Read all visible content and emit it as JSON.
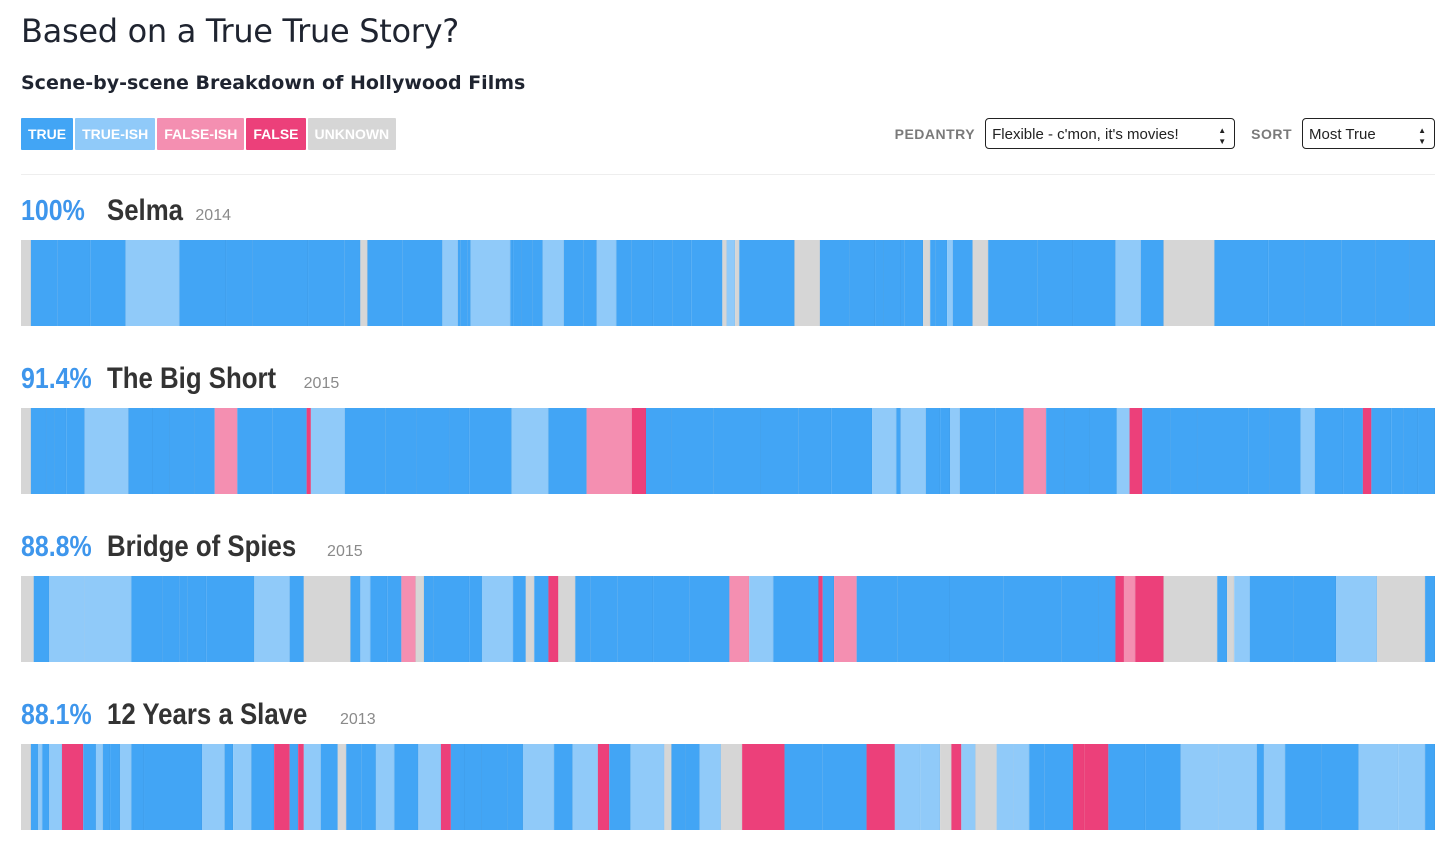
{
  "header": {
    "title": "Based on a True True Story?",
    "subtitle": "Scene-by-scene Breakdown of Hollywood Films"
  },
  "legend": [
    {
      "label": "TRUE",
      "color": "#42a5f5"
    },
    {
      "label": "TRUE-ISH",
      "color": "#90caf9"
    },
    {
      "label": "FALSE-ISH",
      "color": "#f48fb1"
    },
    {
      "label": "FALSE",
      "color": "#ec407a"
    },
    {
      "label": "UNKNOWN",
      "color": "#d6d6d6"
    }
  ],
  "controls": {
    "pedantry_label": "PEDANTRY",
    "pedantry_value": "Flexible - c'mon, it's movies!",
    "sort_label": "SORT",
    "sort_value": "Most True"
  },
  "films": [
    {
      "pct": "100%",
      "title": "Selma",
      "year": "2014",
      "segments": [
        [
          "U",
          0,
          0.7
        ],
        [
          "T",
          0.7,
          2.6
        ],
        [
          "T",
          2.6,
          4.9
        ],
        [
          "T",
          4.9,
          7.4
        ],
        [
          "I",
          7.4,
          11.2
        ],
        [
          "T",
          11.2,
          14.5
        ],
        [
          "T",
          14.5,
          16.4
        ],
        [
          "T",
          16.4,
          20.3
        ],
        [
          "T",
          20.3,
          22.9
        ],
        [
          "T",
          22.9,
          24.0
        ],
        [
          "U",
          24.0,
          24.5
        ],
        [
          "T",
          24.5,
          27.0
        ],
        [
          "T",
          27.0,
          29.8
        ],
        [
          "I",
          29.8,
          30.9
        ],
        [
          "T",
          30.9,
          31.1
        ],
        [
          "T",
          31.1,
          31.6
        ],
        [
          "T",
          31.6,
          31.8
        ],
        [
          "I",
          31.8,
          34.6
        ],
        [
          "T",
          34.6,
          34.8
        ],
        [
          "T",
          34.8,
          35.4
        ],
        [
          "T",
          35.4,
          36.2
        ],
        [
          "T",
          36.2,
          36.9
        ],
        [
          "I",
          36.9,
          38.4
        ],
        [
          "T",
          38.4,
          39.8
        ],
        [
          "T",
          39.8,
          40.7
        ],
        [
          "I",
          40.7,
          42.1
        ],
        [
          "T",
          42.1,
          43.2
        ],
        [
          "T",
          43.2,
          44.7
        ],
        [
          "T",
          44.7,
          46.1
        ],
        [
          "T",
          46.1,
          47.4
        ],
        [
          "T",
          47.4,
          49.6
        ],
        [
          "U",
          49.6,
          49.9
        ],
        [
          "I",
          49.9,
          50.5
        ],
        [
          "U",
          50.5,
          50.8
        ],
        [
          "T",
          50.8,
          54.7
        ],
        [
          "U",
          54.7,
          56.5
        ],
        [
          "T",
          56.5,
          58.6
        ],
        [
          "T",
          58.6,
          60.4
        ],
        [
          "T",
          60.4,
          61.0
        ],
        [
          "T",
          61.0,
          62.2
        ],
        [
          "T",
          62.2,
          62.5
        ],
        [
          "T",
          62.5,
          63.8
        ],
        [
          "U",
          63.8,
          64.3
        ],
        [
          "T",
          64.3,
          64.7
        ],
        [
          "T",
          64.7,
          65.5
        ],
        [
          "I",
          65.5,
          65.9
        ],
        [
          "T",
          65.9,
          67.3
        ],
        [
          "U",
          67.3,
          68.4
        ],
        [
          "T",
          68.4,
          71.9
        ],
        [
          "T",
          71.9,
          74.4
        ],
        [
          "T",
          74.4,
          77.4
        ],
        [
          "I",
          77.4,
          79.2
        ],
        [
          "T",
          79.2,
          80.8
        ],
        [
          "U",
          80.8,
          84.4
        ],
        [
          "T",
          84.4,
          88.2
        ],
        [
          "T",
          88.2,
          90.8
        ],
        [
          "T",
          90.8,
          93.4
        ],
        [
          "T",
          93.4,
          95.8
        ],
        [
          "T",
          95.8,
          98.2
        ],
        [
          "T",
          98.2,
          100
        ]
      ]
    },
    {
      "pct": "91.4%",
      "title": "The Big Short",
      "year": "2015",
      "segments": [
        [
          "U",
          0,
          0.7
        ],
        [
          "T",
          0.7,
          1.8
        ],
        [
          "T",
          1.8,
          2.4
        ],
        [
          "T",
          2.4,
          3.2
        ],
        [
          "T",
          3.2,
          4.5
        ],
        [
          "I",
          4.5,
          7.6
        ],
        [
          "T",
          7.6,
          9.3
        ],
        [
          "T",
          9.3,
          10.5
        ],
        [
          "T",
          10.5,
          12.3
        ],
        [
          "T",
          12.3,
          13.7
        ],
        [
          "F",
          13.7,
          15.3
        ],
        [
          "T",
          15.3,
          17.8
        ],
        [
          "T",
          17.8,
          20.2
        ],
        [
          "X",
          20.2,
          20.5
        ],
        [
          "I",
          20.5,
          22.9
        ],
        [
          "T",
          22.9,
          25.8
        ],
        [
          "T",
          25.8,
          28.0
        ],
        [
          "T",
          28.0,
          30.3
        ],
        [
          "T",
          30.3,
          31.7
        ],
        [
          "T",
          31.7,
          34.7
        ],
        [
          "I",
          34.7,
          37.3
        ],
        [
          "T",
          37.3,
          40.0
        ],
        [
          "F",
          40.0,
          43.2
        ],
        [
          "X",
          43.2,
          44.2
        ],
        [
          "T",
          44.2,
          46.0
        ],
        [
          "T",
          46.0,
          49.0
        ],
        [
          "T",
          49.0,
          52.3
        ],
        [
          "T",
          52.3,
          55.0
        ],
        [
          "T",
          55.0,
          57.3
        ],
        [
          "T",
          57.3,
          60.2
        ],
        [
          "I",
          60.2,
          61.9
        ],
        [
          "T",
          61.9,
          62.2
        ],
        [
          "I",
          62.2,
          64.0
        ],
        [
          "T",
          64.0,
          65.0
        ],
        [
          "T",
          65.0,
          65.7
        ],
        [
          "I",
          65.7,
          66.4
        ],
        [
          "T",
          66.4,
          68.9
        ],
        [
          "T",
          68.9,
          70.9
        ],
        [
          "F",
          70.9,
          72.5
        ],
        [
          "T",
          72.5,
          73.8
        ],
        [
          "T",
          73.8,
          75.6
        ],
        [
          "T",
          75.6,
          77.5
        ],
        [
          "I",
          77.5,
          78.4
        ],
        [
          "X",
          78.4,
          79.3
        ],
        [
          "T",
          79.3,
          81.3
        ],
        [
          "T",
          81.3,
          83.2
        ],
        [
          "T",
          83.2,
          86.8
        ],
        [
          "T",
          86.8,
          88.3
        ],
        [
          "T",
          88.3,
          90.5
        ],
        [
          "I",
          90.5,
          91.5
        ],
        [
          "T",
          91.5,
          93.5
        ],
        [
          "T",
          93.5,
          94.9
        ],
        [
          "X",
          94.9,
          95.5
        ],
        [
          "T",
          95.5,
          96.9
        ],
        [
          "T",
          96.9,
          97.8
        ],
        [
          "T",
          97.8,
          98.8
        ],
        [
          "T",
          98.8,
          100
        ]
      ]
    },
    {
      "pct": "88.8%",
      "title": "Bridge of Spies",
      "year": "2015",
      "segments": [
        [
          "U",
          0,
          0.9
        ],
        [
          "T",
          0.9,
          2.0
        ],
        [
          "I",
          2.0,
          4.5
        ],
        [
          "I",
          4.5,
          7.8
        ],
        [
          "T",
          7.8,
          10.0
        ],
        [
          "T",
          10.0,
          11.2
        ],
        [
          "T",
          11.2,
          11.8
        ],
        [
          "T",
          11.8,
          13.1
        ],
        [
          "T",
          13.1,
          16.5
        ],
        [
          "I",
          16.5,
          19.0
        ],
        [
          "T",
          19.0,
          20.0
        ],
        [
          "U",
          20.0,
          23.3
        ],
        [
          "T",
          23.3,
          24.0
        ],
        [
          "I",
          24.0,
          24.7
        ],
        [
          "T",
          24.7,
          25.9
        ],
        [
          "T",
          25.9,
          26.9
        ],
        [
          "F",
          26.9,
          27.9
        ],
        [
          "U",
          27.9,
          28.5
        ],
        [
          "T",
          28.5,
          29.2
        ],
        [
          "T",
          29.2,
          31.7
        ],
        [
          "T",
          31.7,
          32.6
        ],
        [
          "I",
          32.6,
          34.8
        ],
        [
          "T",
          34.8,
          35.7
        ],
        [
          "U",
          35.7,
          36.3
        ],
        [
          "T",
          36.3,
          37.3
        ],
        [
          "X",
          37.3,
          38.0
        ],
        [
          "U",
          38.0,
          39.2
        ],
        [
          "T",
          39.2,
          40.3
        ],
        [
          "T",
          40.3,
          42.2
        ],
        [
          "T",
          42.2,
          44.7
        ],
        [
          "T",
          44.7,
          47.3
        ],
        [
          "T",
          47.3,
          50.1
        ],
        [
          "F",
          50.1,
          51.5
        ],
        [
          "I",
          51.5,
          53.2
        ],
        [
          "T",
          53.2,
          56.4
        ],
        [
          "X",
          56.4,
          56.7
        ],
        [
          "T",
          56.7,
          57.5
        ],
        [
          "F",
          57.5,
          59.1
        ],
        [
          "T",
          59.1,
          62.0
        ],
        [
          "T",
          62.0,
          65.7
        ],
        [
          "T",
          65.7,
          69.5
        ],
        [
          "T",
          69.5,
          73.6
        ],
        [
          "T",
          73.6,
          76.2
        ],
        [
          "T",
          76.2,
          77.4
        ],
        [
          "X",
          77.4,
          78.0
        ],
        [
          "F",
          78.0,
          78.8
        ],
        [
          "X",
          78.8,
          80.8
        ],
        [
          "U",
          80.8,
          84.6
        ],
        [
          "T",
          84.6,
          85.3
        ],
        [
          "U",
          85.3,
          85.8
        ],
        [
          "I",
          85.8,
          86.9
        ],
        [
          "T",
          86.9,
          90.0
        ],
        [
          "T",
          90.0,
          93.0
        ],
        [
          "I",
          93.0,
          95.9
        ],
        [
          "U",
          95.9,
          98.5
        ],
        [
          "U",
          98.5,
          99.3
        ],
        [
          "T",
          99.3,
          100
        ]
      ]
    },
    {
      "pct": "88.1%",
      "title": "12 Years a Slave",
      "year": "2013",
      "segments": [
        [
          "U",
          0,
          0.7
        ],
        [
          "T",
          0.7,
          1.2
        ],
        [
          "I",
          1.2,
          1.5
        ],
        [
          "T",
          1.5,
          2.0
        ],
        [
          "I",
          2.0,
          2.9
        ],
        [
          "X",
          2.9,
          4.4
        ],
        [
          "T",
          4.4,
          5.3
        ],
        [
          "I",
          5.3,
          5.8
        ],
        [
          "T",
          5.8,
          6.3
        ],
        [
          "T",
          6.3,
          7.0
        ],
        [
          "I",
          7.0,
          7.8
        ],
        [
          "T",
          7.8,
          8.7
        ],
        [
          "T",
          8.7,
          12.8
        ],
        [
          "I",
          12.8,
          14.4
        ],
        [
          "T",
          14.4,
          15.0
        ],
        [
          "I",
          15.0,
          16.3
        ],
        [
          "T",
          16.3,
          17.9
        ],
        [
          "X",
          17.9,
          19.0
        ],
        [
          "T",
          19.0,
          19.6
        ],
        [
          "X",
          19.6,
          20.0
        ],
        [
          "I",
          20.0,
          21.2
        ],
        [
          "T",
          21.2,
          22.4
        ],
        [
          "U",
          22.4,
          23.0
        ],
        [
          "T",
          23.0,
          24.1
        ],
        [
          "T",
          24.1,
          25.1
        ],
        [
          "I",
          25.1,
          26.4
        ],
        [
          "T",
          26.4,
          28.1
        ],
        [
          "I",
          28.1,
          29.7
        ],
        [
          "X",
          29.7,
          30.4
        ],
        [
          "T",
          30.4,
          31.4
        ],
        [
          "T",
          31.4,
          32.6
        ],
        [
          "T",
          32.6,
          34.4
        ],
        [
          "T",
          34.4,
          35.5
        ],
        [
          "I",
          35.5,
          37.7
        ],
        [
          "T",
          37.7,
          39.0
        ],
        [
          "I",
          39.0,
          40.8
        ],
        [
          "X",
          40.8,
          41.6
        ],
        [
          "T",
          41.6,
          43.1
        ],
        [
          "I",
          43.1,
          45.5
        ],
        [
          "U",
          45.5,
          46.0
        ],
        [
          "T",
          46.0,
          47.0
        ],
        [
          "T",
          47.0,
          48.0
        ],
        [
          "I",
          48.0,
          49.5
        ],
        [
          "U",
          49.5,
          51.0
        ],
        [
          "X",
          51.0,
          54.0
        ],
        [
          "T",
          54.0,
          56.7
        ],
        [
          "T",
          56.7,
          59.8
        ],
        [
          "X",
          59.8,
          61.8
        ],
        [
          "I",
          61.8,
          63.6
        ],
        [
          "I",
          63.6,
          65.0
        ],
        [
          "U",
          65.0,
          65.8
        ],
        [
          "X",
          65.8,
          66.5
        ],
        [
          "I",
          66.5,
          67.5
        ],
        [
          "U",
          67.5,
          69.0
        ],
        [
          "I",
          69.0,
          70.2
        ],
        [
          "I",
          70.2,
          71.3
        ],
        [
          "T",
          71.3,
          72.4
        ],
        [
          "T",
          72.4,
          74.4
        ],
        [
          "X",
          74.4,
          75.2
        ],
        [
          "X",
          75.2,
          76.9
        ],
        [
          "T",
          76.9,
          79.5
        ],
        [
          "T",
          79.5,
          82.0
        ],
        [
          "I",
          82.0,
          84.7
        ],
        [
          "I",
          84.7,
          87.4
        ],
        [
          "T",
          87.4,
          87.9
        ],
        [
          "I",
          87.9,
          89.4
        ],
        [
          "T",
          89.4,
          92.0
        ],
        [
          "T",
          92.0,
          94.6
        ],
        [
          "I",
          94.6,
          97.4
        ],
        [
          "I",
          97.4,
          99.3
        ],
        [
          "T",
          99.3,
          100
        ]
      ]
    }
  ]
}
